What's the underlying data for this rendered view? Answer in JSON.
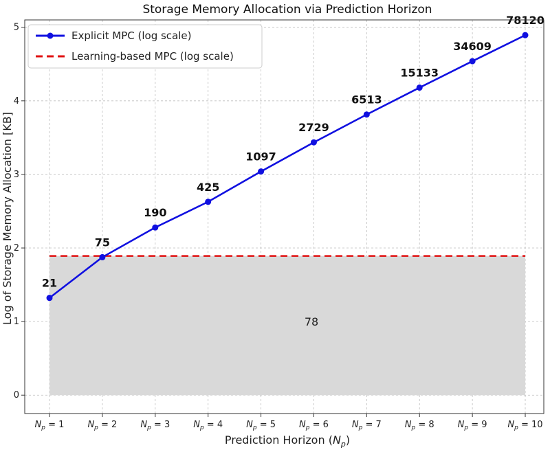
{
  "chart_data": {
    "type": "line",
    "title": "Storage Memory Allocation via Prediction Horizon",
    "xlabel": "Prediction Horizon (N_p)",
    "ylabel": "Log of Storage Memory Allocation [KB]",
    "categories": [
      "Np = 1",
      "Np = 2",
      "Np = 3",
      "Np = 4",
      "Np = 5",
      "Np = 6",
      "Np = 7",
      "Np = 8",
      "Np = 9",
      "Np = 10"
    ],
    "x_ticks": [
      {
        "main": "N",
        "sub": "p",
        "rest": " = 1"
      },
      {
        "main": "N",
        "sub": "p",
        "rest": " = 2"
      },
      {
        "main": "N",
        "sub": "p",
        "rest": " = 3"
      },
      {
        "main": "N",
        "sub": "p",
        "rest": " = 4"
      },
      {
        "main": "N",
        "sub": "p",
        "rest": " = 5"
      },
      {
        "main": "N",
        "sub": "p",
        "rest": " = 6"
      },
      {
        "main": "N",
        "sub": "p",
        "rest": " = 7"
      },
      {
        "main": "N",
        "sub": "p",
        "rest": " = 8"
      },
      {
        "main": "N",
        "sub": "p",
        "rest": " = 9"
      },
      {
        "main": "N",
        "sub": "p",
        "rest": " = 10"
      }
    ],
    "y_ticks": [
      0,
      1,
      2,
      3,
      4,
      5
    ],
    "ylim": [
      -0.25,
      5.1
    ],
    "grid": true,
    "legend_position": "top-left",
    "series": [
      {
        "name": "Explicit MPC (log scale)",
        "style": "solid-line-with-markers",
        "color": "#1010e0",
        "raw_values": [
          21,
          75,
          190,
          425,
          1097,
          2729,
          6513,
          15133,
          34609,
          78120
        ],
        "labels": [
          "21",
          "75",
          "190",
          "425",
          "1097",
          "2729",
          "6513",
          "15133",
          "34609",
          "78120"
        ],
        "values": [
          1.322,
          1.875,
          2.279,
          2.628,
          3.04,
          3.436,
          3.814,
          4.18,
          4.539,
          4.893
        ]
      },
      {
        "name": "Learning-based MPC (log scale)",
        "style": "dashed-line",
        "color": "#e01010",
        "raw_value": 78,
        "value": 1.892
      }
    ],
    "shaded_region": {
      "color": "#d9d9d9",
      "y_top": 1.892,
      "label": "78"
    }
  }
}
